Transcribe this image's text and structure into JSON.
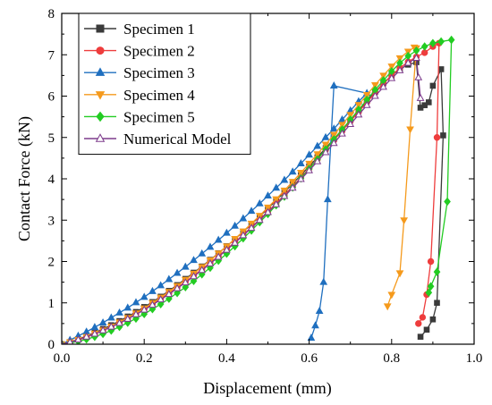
{
  "chart_data": {
    "type": "line",
    "title": "",
    "xlabel": "Displacement (mm)",
    "ylabel": "Contact Force (kN)",
    "xlim": [
      0.0,
      1.0
    ],
    "ylim": [
      0,
      8
    ],
    "x_ticks": [
      "0.0",
      "0.2",
      "0.4",
      "0.6",
      "0.8",
      "1.0"
    ],
    "y_ticks": [
      "0",
      "1",
      "2",
      "3",
      "4",
      "5",
      "6",
      "7",
      "8"
    ],
    "grid": false,
    "legend_position": "top-left",
    "series": [
      {
        "name": "Specimen 1",
        "color": "#3a3a3a",
        "marker": "square",
        "filled": true,
        "points": [
          [
            0,
            0
          ],
          [
            0.02,
            0.05
          ],
          [
            0.04,
            0.12
          ],
          [
            0.06,
            0.2
          ],
          [
            0.08,
            0.28
          ],
          [
            0.1,
            0.37
          ],
          [
            0.12,
            0.46
          ],
          [
            0.14,
            0.56
          ],
          [
            0.16,
            0.67
          ],
          [
            0.18,
            0.78
          ],
          [
            0.2,
            0.9
          ],
          [
            0.22,
            1.02
          ],
          [
            0.24,
            1.15
          ],
          [
            0.26,
            1.29
          ],
          [
            0.28,
            1.43
          ],
          [
            0.3,
            1.58
          ],
          [
            0.32,
            1.73
          ],
          [
            0.34,
            1.88
          ],
          [
            0.36,
            2.04
          ],
          [
            0.38,
            2.2
          ],
          [
            0.4,
            2.37
          ],
          [
            0.42,
            2.54
          ],
          [
            0.44,
            2.72
          ],
          [
            0.46,
            2.9
          ],
          [
            0.48,
            3.09
          ],
          [
            0.5,
            3.28
          ],
          [
            0.52,
            3.48
          ],
          [
            0.54,
            3.68
          ],
          [
            0.56,
            3.88
          ],
          [
            0.58,
            4.09
          ],
          [
            0.6,
            4.3
          ],
          [
            0.62,
            4.52
          ],
          [
            0.64,
            4.74
          ],
          [
            0.66,
            4.96
          ],
          [
            0.68,
            5.19
          ],
          [
            0.7,
            5.42
          ],
          [
            0.72,
            5.65
          ],
          [
            0.74,
            5.88
          ],
          [
            0.76,
            6.1
          ],
          [
            0.78,
            6.31
          ],
          [
            0.8,
            6.5
          ],
          [
            0.82,
            6.65
          ],
          [
            0.84,
            6.76
          ],
          [
            0.86,
            6.82
          ],
          [
            0.87,
            5.72
          ],
          [
            0.88,
            5.78
          ],
          [
            0.89,
            5.85
          ],
          [
            0.9,
            6.25
          ],
          [
            0.92,
            6.65
          ],
          [
            0.925,
            5.05
          ],
          [
            0.91,
            1.0
          ],
          [
            0.9,
            0.6
          ],
          [
            0.885,
            0.35
          ],
          [
            0.87,
            0.18
          ]
        ]
      },
      {
        "name": "Specimen 2",
        "color": "#ee3d3d",
        "marker": "circle",
        "filled": true,
        "points": [
          [
            0,
            0
          ],
          [
            0.02,
            0.04
          ],
          [
            0.04,
            0.1
          ],
          [
            0.06,
            0.17
          ],
          [
            0.08,
            0.25
          ],
          [
            0.1,
            0.33
          ],
          [
            0.12,
            0.42
          ],
          [
            0.14,
            0.52
          ],
          [
            0.16,
            0.62
          ],
          [
            0.18,
            0.73
          ],
          [
            0.2,
            0.85
          ],
          [
            0.22,
            0.97
          ],
          [
            0.24,
            1.1
          ],
          [
            0.26,
            1.23
          ],
          [
            0.28,
            1.37
          ],
          [
            0.3,
            1.51
          ],
          [
            0.32,
            1.66
          ],
          [
            0.34,
            1.81
          ],
          [
            0.36,
            1.97
          ],
          [
            0.38,
            2.13
          ],
          [
            0.4,
            2.3
          ],
          [
            0.42,
            2.47
          ],
          [
            0.44,
            2.65
          ],
          [
            0.46,
            2.83
          ],
          [
            0.48,
            3.02
          ],
          [
            0.5,
            3.21
          ],
          [
            0.52,
            3.41
          ],
          [
            0.54,
            3.61
          ],
          [
            0.56,
            3.82
          ],
          [
            0.58,
            4.03
          ],
          [
            0.6,
            4.25
          ],
          [
            0.62,
            4.47
          ],
          [
            0.64,
            4.7
          ],
          [
            0.66,
            4.93
          ],
          [
            0.68,
            5.16
          ],
          [
            0.7,
            5.39
          ],
          [
            0.72,
            5.62
          ],
          [
            0.74,
            5.85
          ],
          [
            0.76,
            6.08
          ],
          [
            0.78,
            6.3
          ],
          [
            0.8,
            6.5
          ],
          [
            0.82,
            6.68
          ],
          [
            0.84,
            6.83
          ],
          [
            0.86,
            6.95
          ],
          [
            0.88,
            7.05
          ],
          [
            0.9,
            7.2
          ],
          [
            0.915,
            7.28
          ],
          [
            0.91,
            5.0
          ],
          [
            0.895,
            2.0
          ],
          [
            0.885,
            1.2
          ],
          [
            0.875,
            0.65
          ],
          [
            0.865,
            0.5
          ]
        ]
      },
      {
        "name": "Specimen 3",
        "color": "#1f6fbf",
        "marker": "triangle-up",
        "filled": true,
        "points": [
          [
            0,
            0
          ],
          [
            0.02,
            0.1
          ],
          [
            0.04,
            0.2
          ],
          [
            0.06,
            0.3
          ],
          [
            0.08,
            0.41
          ],
          [
            0.1,
            0.52
          ],
          [
            0.12,
            0.64
          ],
          [
            0.14,
            0.76
          ],
          [
            0.16,
            0.88
          ],
          [
            0.18,
            1.01
          ],
          [
            0.2,
            1.14
          ],
          [
            0.22,
            1.28
          ],
          [
            0.24,
            1.42
          ],
          [
            0.26,
            1.57
          ],
          [
            0.28,
            1.72
          ],
          [
            0.3,
            1.87
          ],
          [
            0.32,
            2.03
          ],
          [
            0.34,
            2.19
          ],
          [
            0.36,
            2.35
          ],
          [
            0.38,
            2.52
          ],
          [
            0.4,
            2.69
          ],
          [
            0.42,
            2.86
          ],
          [
            0.44,
            3.04
          ],
          [
            0.46,
            3.22
          ],
          [
            0.48,
            3.4
          ],
          [
            0.5,
            3.59
          ],
          [
            0.52,
            3.78
          ],
          [
            0.54,
            3.97
          ],
          [
            0.56,
            4.17
          ],
          [
            0.58,
            4.37
          ],
          [
            0.6,
            4.58
          ],
          [
            0.62,
            4.79
          ],
          [
            0.64,
            5.0
          ],
          [
            0.66,
            5.21
          ],
          [
            0.68,
            5.43
          ],
          [
            0.7,
            5.65
          ],
          [
            0.72,
            5.87
          ],
          [
            0.74,
            6.07
          ],
          [
            0.66,
            6.25
          ],
          [
            0.645,
            3.5
          ],
          [
            0.635,
            1.5
          ],
          [
            0.625,
            0.8
          ],
          [
            0.615,
            0.45
          ],
          [
            0.605,
            0.15
          ]
        ]
      },
      {
        "name": "Specimen 4",
        "color": "#f59a1c",
        "marker": "triangle-down",
        "filled": true,
        "points": [
          [
            0,
            0
          ],
          [
            0.02,
            0.05
          ],
          [
            0.04,
            0.11
          ],
          [
            0.06,
            0.18
          ],
          [
            0.08,
            0.26
          ],
          [
            0.1,
            0.34
          ],
          [
            0.12,
            0.43
          ],
          [
            0.14,
            0.53
          ],
          [
            0.16,
            0.64
          ],
          [
            0.18,
            0.75
          ],
          [
            0.2,
            0.87
          ],
          [
            0.22,
            1.0
          ],
          [
            0.24,
            1.13
          ],
          [
            0.26,
            1.27
          ],
          [
            0.28,
            1.41
          ],
          [
            0.3,
            1.56
          ],
          [
            0.32,
            1.71
          ],
          [
            0.34,
            1.87
          ],
          [
            0.36,
            2.03
          ],
          [
            0.38,
            2.2
          ],
          [
            0.4,
            2.37
          ],
          [
            0.42,
            2.55
          ],
          [
            0.44,
            2.73
          ],
          [
            0.46,
            2.92
          ],
          [
            0.48,
            3.11
          ],
          [
            0.5,
            3.31
          ],
          [
            0.52,
            3.51
          ],
          [
            0.54,
            3.72
          ],
          [
            0.56,
            3.93
          ],
          [
            0.58,
            4.15
          ],
          [
            0.6,
            4.37
          ],
          [
            0.62,
            4.6
          ],
          [
            0.64,
            4.83
          ],
          [
            0.66,
            5.07
          ],
          [
            0.68,
            5.31
          ],
          [
            0.7,
            5.55
          ],
          [
            0.72,
            5.79
          ],
          [
            0.74,
            6.03
          ],
          [
            0.76,
            6.27
          ],
          [
            0.78,
            6.5
          ],
          [
            0.8,
            6.72
          ],
          [
            0.82,
            6.92
          ],
          [
            0.84,
            7.08
          ],
          [
            0.855,
            7.18
          ],
          [
            0.86,
            7.16
          ],
          [
            0.845,
            5.2
          ],
          [
            0.83,
            3.0
          ],
          [
            0.82,
            1.72
          ],
          [
            0.8,
            1.2
          ],
          [
            0.79,
            0.92
          ]
        ]
      },
      {
        "name": "Specimen 5",
        "color": "#22cc22",
        "marker": "diamond",
        "filled": true,
        "points": [
          [
            0,
            0
          ],
          [
            0.02,
            0.03
          ],
          [
            0.04,
            0.07
          ],
          [
            0.06,
            0.12
          ],
          [
            0.08,
            0.18
          ],
          [
            0.1,
            0.25
          ],
          [
            0.12,
            0.33
          ],
          [
            0.14,
            0.42
          ],
          [
            0.16,
            0.52
          ],
          [
            0.18,
            0.62
          ],
          [
            0.2,
            0.73
          ],
          [
            0.22,
            0.85
          ],
          [
            0.24,
            0.97
          ],
          [
            0.26,
            1.1
          ],
          [
            0.28,
            1.24
          ],
          [
            0.3,
            1.38
          ],
          [
            0.32,
            1.53
          ],
          [
            0.34,
            1.69
          ],
          [
            0.36,
            1.85
          ],
          [
            0.38,
            2.02
          ],
          [
            0.4,
            2.19
          ],
          [
            0.42,
            2.37
          ],
          [
            0.44,
            2.56
          ],
          [
            0.46,
            2.75
          ],
          [
            0.48,
            2.95
          ],
          [
            0.5,
            3.15
          ],
          [
            0.52,
            3.36
          ],
          [
            0.54,
            3.57
          ],
          [
            0.56,
            3.79
          ],
          [
            0.58,
            4.01
          ],
          [
            0.6,
            4.24
          ],
          [
            0.62,
            4.47
          ],
          [
            0.64,
            4.71
          ],
          [
            0.66,
            4.95
          ],
          [
            0.68,
            5.19
          ],
          [
            0.7,
            5.43
          ],
          [
            0.72,
            5.67
          ],
          [
            0.74,
            5.91
          ],
          [
            0.76,
            6.15
          ],
          [
            0.78,
            6.38
          ],
          [
            0.8,
            6.6
          ],
          [
            0.82,
            6.8
          ],
          [
            0.84,
            6.97
          ],
          [
            0.86,
            7.1
          ],
          [
            0.88,
            7.2
          ],
          [
            0.9,
            7.28
          ],
          [
            0.92,
            7.32
          ],
          [
            0.945,
            7.36
          ],
          [
            0.935,
            3.45
          ],
          [
            0.91,
            1.75
          ],
          [
            0.895,
            1.4
          ],
          [
            0.89,
            1.25
          ]
        ]
      },
      {
        "name": "Numerical Model",
        "color": "#7d3b8c",
        "marker": "triangle-up",
        "filled": false,
        "points": [
          [
            0,
            0
          ],
          [
            0.02,
            0.05
          ],
          [
            0.04,
            0.11
          ],
          [
            0.06,
            0.18
          ],
          [
            0.08,
            0.25
          ],
          [
            0.1,
            0.33
          ],
          [
            0.12,
            0.42
          ],
          [
            0.14,
            0.51
          ],
          [
            0.16,
            0.61
          ],
          [
            0.18,
            0.72
          ],
          [
            0.2,
            0.83
          ],
          [
            0.22,
            0.95
          ],
          [
            0.24,
            1.08
          ],
          [
            0.26,
            1.21
          ],
          [
            0.28,
            1.35
          ],
          [
            0.3,
            1.49
          ],
          [
            0.32,
            1.64
          ],
          [
            0.34,
            1.79
          ],
          [
            0.36,
            1.95
          ],
          [
            0.38,
            2.11
          ],
          [
            0.4,
            2.28
          ],
          [
            0.42,
            2.45
          ],
          [
            0.44,
            2.63
          ],
          [
            0.46,
            2.81
          ],
          [
            0.48,
            3.0
          ],
          [
            0.5,
            3.19
          ],
          [
            0.52,
            3.38
          ],
          [
            0.54,
            3.58
          ],
          [
            0.56,
            3.78
          ],
          [
            0.58,
            3.99
          ],
          [
            0.6,
            4.2
          ],
          [
            0.62,
            4.42
          ],
          [
            0.64,
            4.64
          ],
          [
            0.66,
            4.86
          ],
          [
            0.68,
            5.09
          ],
          [
            0.7,
            5.32
          ],
          [
            0.72,
            5.55
          ],
          [
            0.74,
            5.78
          ],
          [
            0.76,
            6.0
          ],
          [
            0.78,
            6.22
          ],
          [
            0.8,
            6.43
          ],
          [
            0.82,
            6.62
          ],
          [
            0.84,
            6.8
          ],
          [
            0.86,
            6.92
          ],
          [
            0.865,
            6.45
          ],
          [
            0.87,
            5.95
          ]
        ]
      }
    ]
  }
}
